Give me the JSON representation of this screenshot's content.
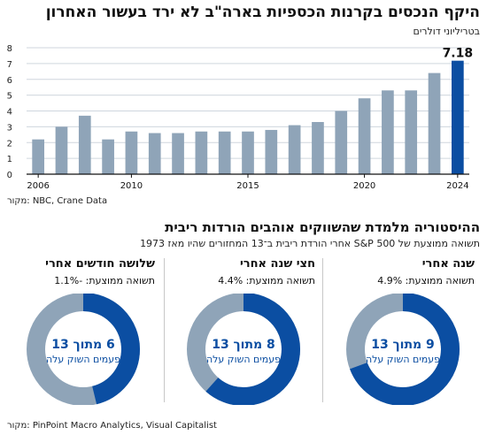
{
  "chart1": {
    "title": "היקף הנכסים בקרנות הכספיות בארה\"ב לא ירד בעשור האחרון",
    "subtitle": "בטריליוני דולרים",
    "source": "מקור: NBC, Crane Data",
    "colors": {
      "bar": "#8fa4b8",
      "highlight": "#0b4ea2",
      "grid": "#cfd6de",
      "axis": "#111111"
    }
  },
  "chart_data": [
    {
      "type": "bar",
      "title": "היקף הנכסים בקרנות הכספיות בארה\"ב לא ירד בעשור האחרון",
      "subtitle": "בטריליוני דולרים",
      "xlabel": "",
      "ylabel": "",
      "categories": [
        "2006",
        "2007",
        "2008",
        "2009",
        "2010",
        "2011",
        "2012",
        "2013",
        "2014",
        "2015",
        "2016",
        "2017",
        "2018",
        "2019",
        "2020",
        "2021",
        "2022",
        "2023",
        "2024"
      ],
      "x_tick_labels": [
        "2006",
        "2010",
        "2015",
        "2020",
        "2024"
      ],
      "values": [
        2.2,
        3.0,
        3.7,
        2.2,
        2.7,
        2.6,
        2.6,
        2.7,
        2.7,
        2.7,
        2.8,
        3.1,
        3.3,
        4.0,
        4.8,
        5.3,
        5.3,
        6.4,
        7.18
      ],
      "highlight_label": "7.18",
      "ylim": [
        0,
        8
      ],
      "y_ticks": [
        0,
        1,
        2,
        3,
        4,
        5,
        6,
        7,
        8
      ],
      "grid": true
    },
    {
      "type": "pie",
      "title": "שנה אחרי",
      "avg_return": "תשואה ממוצעת: 4.9%",
      "center_big": "9 מתוך 13",
      "center_small": "פעמים השוק עלה",
      "values": [
        9,
        4
      ],
      "total": 13
    },
    {
      "type": "pie",
      "title": "חצי שנה אחרי",
      "avg_return": "תשואה ממוצעת: 4.4%",
      "center_big": "8 מתוך 13",
      "center_small": "פעמים השוק עלה",
      "values": [
        8,
        5
      ],
      "total": 13
    },
    {
      "type": "pie",
      "title": "שלושה חודשים אחרי",
      "avg_return": "תשואה ממוצעת: -1.1%",
      "center_big": "6 מתוך 13",
      "center_small": "פעמים השוק עלה",
      "values": [
        6,
        7
      ],
      "total": 13
    }
  ],
  "section2": {
    "title": "ההיסטוריה מלמדת שהשווקים אוהבים הורדות ריבית",
    "subtitle": "תשואה ממוצעת של S&P 500 אחרי הורדת ריבית ב־13 המחזורים שהיו מאז 1973",
    "source": "מקור: PinPoint Macro Analytics, Visual Capitalist",
    "colors": {
      "up": "#0b4ea2",
      "down": "#8fa4b8"
    }
  }
}
